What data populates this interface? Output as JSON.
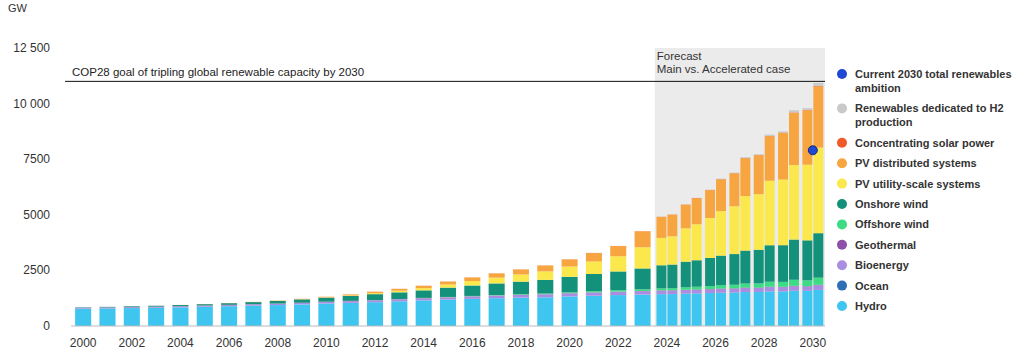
{
  "chart_data": {
    "type": "bar",
    "stacked": true,
    "y_label": "GW",
    "legend": "right",
    "grid": false,
    "annotations": [
      {
        "text": "COP28 goal of tripling global renewable capacity by 2030",
        "y": 11000
      },
      {
        "text": "Forecast"
      },
      {
        "text": "Main vs. Accelerated case"
      }
    ],
    "x": [
      2000,
      2001,
      2002,
      2003,
      2004,
      2005,
      2006,
      2007,
      2008,
      2009,
      2010,
      2011,
      2012,
      2013,
      2014,
      2015,
      2016,
      2017,
      2018,
      2019,
      2020,
      2021,
      2022,
      2023,
      2024,
      2024,
      2025,
      2025,
      2026,
      2026,
      2027,
      2027,
      2028,
      2028,
      2029,
      2029,
      2030,
      2030
    ],
    "xlim": [
      1999.5,
      2030.5
    ],
    "xticks": [
      2000,
      2002,
      2004,
      2006,
      2008,
      2010,
      2012,
      2014,
      2016,
      2018,
      2020,
      2022,
      2024,
      2026,
      2028,
      2030
    ],
    "ylim": [
      0,
      12500
    ],
    "yticks": [
      0,
      2500,
      5000,
      7500,
      {
        "value": 10000,
        "label": "10 000"
      },
      {
        "value": 12500,
        "label": "12 500"
      }
    ],
    "series": [
      {
        "name": "Current 2030 total renewables ambition",
        "type": "scatter",
        "marker": "circle",
        "color": "#1f47d6",
        "values": [
          null,
          null,
          null,
          null,
          null,
          null,
          null,
          null,
          null,
          null,
          null,
          null,
          null,
          null,
          null,
          null,
          null,
          null,
          null,
          null,
          null,
          null,
          null,
          null,
          null,
          null,
          null,
          null,
          null,
          null,
          null,
          null,
          null,
          null,
          null,
          null,
          7900,
          null
        ]
      },
      {
        "name": "Renewables dedicated to H2 production",
        "color": "#c9c9c9",
        "values": [
          0,
          0,
          0,
          0,
          0,
          0,
          0,
          0,
          0,
          0,
          0,
          0,
          0,
          0,
          0,
          0,
          0,
          0,
          0,
          0,
          0,
          0,
          0,
          0,
          2,
          3,
          5,
          8,
          10,
          18,
          20,
          35,
          35,
          60,
          55,
          95,
          80,
          140
        ]
      },
      {
        "name": "Concentrating solar power",
        "color": "#f05a28",
        "values": [
          0.35,
          0.35,
          0.35,
          0.35,
          0.35,
          0.35,
          0.4,
          0.45,
          0.5,
          0.7,
          1.3,
          1.8,
          2.5,
          3.5,
          4.3,
          4.8,
          4.9,
          5.1,
          5.6,
          6.2,
          6.4,
          6.5,
          6.6,
          6.8,
          7.5,
          8,
          8,
          9,
          9,
          10,
          10,
          12,
          11,
          14,
          12,
          16,
          13,
          18
        ]
      },
      {
        "name": "PV distributed systems",
        "color": "#f7a541",
        "values": [
          1,
          1.5,
          2,
          3,
          4,
          5,
          7,
          9,
          13,
          20,
          30,
          45,
          65,
          85,
          105,
          130,
          160,
          190,
          225,
          265,
          320,
          380,
          460,
          720,
          940,
          970,
          1060,
          1170,
          1250,
          1430,
          1480,
          1700,
          1750,
          2000,
          2100,
          2350,
          2450,
          2750
        ]
      },
      {
        "name": "PV utility-scale systems",
        "color": "#fbe84c",
        "values": [
          0.1,
          0.1,
          0.1,
          0.2,
          0.3,
          0.4,
          0.6,
          1,
          3,
          6,
          12,
          25,
          45,
          70,
          100,
          140,
          200,
          260,
          320,
          380,
          460,
          560,
          680,
          950,
          1230,
          1270,
          1500,
          1620,
          1800,
          2000,
          2150,
          2450,
          2500,
          2900,
          2950,
          3350,
          3400,
          3850
        ]
      },
      {
        "name": "Onshore wind",
        "color": "#13917a",
        "values": [
          17,
          24,
          31,
          39,
          48,
          59,
          74,
          93,
          115,
          150,
          180,
          220,
          265,
          300,
          340,
          420,
          470,
          520,
          565,
          615,
          700,
          770,
          840,
          940,
          1040,
          1060,
          1150,
          1190,
          1260,
          1330,
          1380,
          1480,
          1510,
          1640,
          1650,
          1810,
          1800,
          2000
        ]
      },
      {
        "name": "Offshore wind",
        "color": "#3ddc84",
        "values": [
          0,
          0,
          0.1,
          0.3,
          0.5,
          0.7,
          0.8,
          1,
          1.5,
          2,
          3,
          4,
          5.5,
          7,
          9,
          12,
          14,
          19,
          24,
          29,
          35,
          54,
          63,
          73,
          90,
          95,
          110,
          120,
          135,
          150,
          160,
          185,
          190,
          225,
          225,
          270,
          260,
          320
        ]
      },
      {
        "name": "Geothermal",
        "color": "#8e4fa8",
        "values": [
          8,
          8.1,
          8.3,
          8.5,
          8.7,
          8.9,
          9.1,
          9.3,
          9.6,
          10,
          10.2,
          10.5,
          10.8,
          11.2,
          11.6,
          12,
          12.3,
          12.8,
          13.2,
          13.6,
          14,
          14.4,
          14.7,
          15,
          15.5,
          15.5,
          16,
          16,
          16.5,
          16.7,
          17,
          17.4,
          17.5,
          18,
          18,
          18.8,
          18.5,
          19.5
        ]
      },
      {
        "name": "Bioenergy",
        "color": "#a98de0",
        "values": [
          35,
          37,
          40,
          42,
          45,
          48,
          52,
          56,
          60,
          64,
          70,
          75,
          80,
          86,
          92,
          98,
          105,
          112,
          118,
          125,
          133,
          140,
          145,
          150,
          155,
          157,
          160,
          165,
          165,
          172,
          172,
          182,
          178,
          192,
          185,
          202,
          192,
          212
        ]
      },
      {
        "name": "Ocean",
        "color": "#2f6db5",
        "values": [
          0.3,
          0.3,
          0.3,
          0.3,
          0.3,
          0.3,
          0.3,
          0.3,
          0.3,
          0.3,
          0.3,
          0.5,
          0.5,
          0.5,
          0.5,
          0.5,
          0.5,
          0.5,
          0.5,
          0.5,
          0.5,
          0.5,
          0.5,
          0.5,
          0.6,
          0.6,
          0.7,
          0.7,
          0.8,
          0.9,
          0.9,
          1.1,
          1,
          1.3,
          1.2,
          1.6,
          1.4,
          2
        ]
      },
      {
        "name": "Hydro",
        "color": "#3ec5f0",
        "values": [
          780,
          790,
          805,
          820,
          840,
          865,
          890,
          915,
          940,
          970,
          1010,
          1040,
          1070,
          1110,
          1150,
          1185,
          1220,
          1250,
          1275,
          1290,
          1330,
          1360,
          1390,
          1410,
          1430,
          1435,
          1455,
          1465,
          1480,
          1495,
          1505,
          1525,
          1530,
          1555,
          1555,
          1585,
          1580,
          1620
        ]
      }
    ]
  }
}
